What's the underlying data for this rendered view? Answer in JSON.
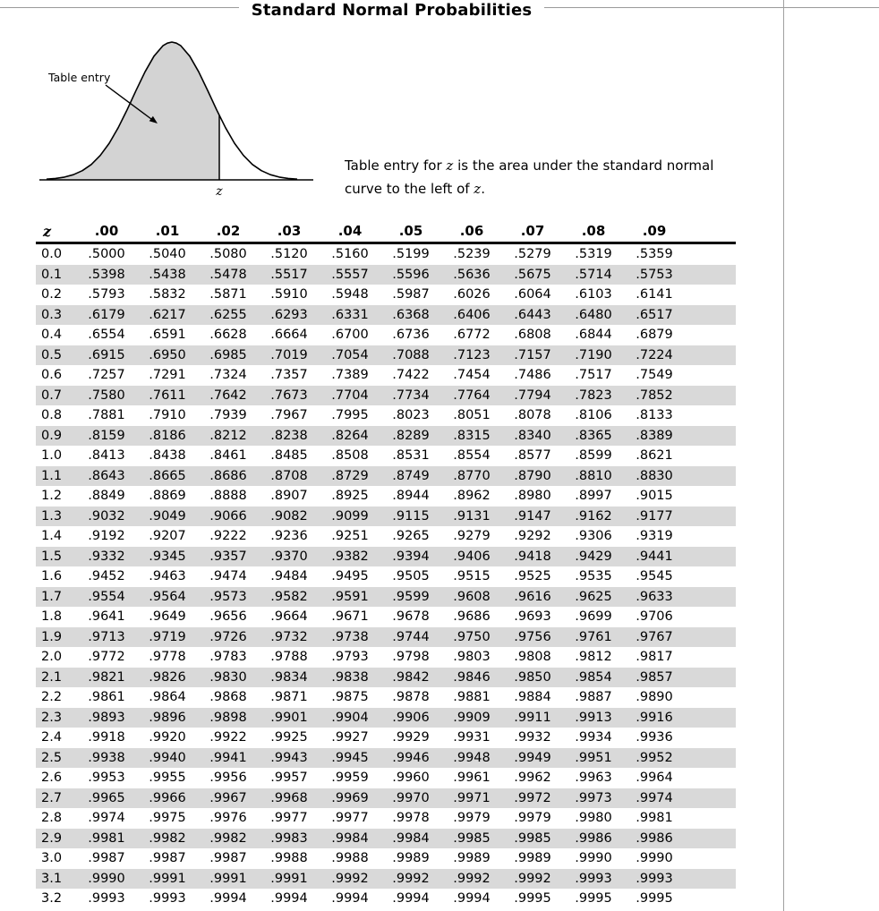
{
  "page": {
    "title": "Standard Normal Probabilities"
  },
  "diagram": {
    "table_entry_label": "Table entry",
    "z_label": "z",
    "curve_fill": "#d3d3d3"
  },
  "caption": {
    "segments": [
      {
        "text": "Table entry for ",
        "italic": false
      },
      {
        "text": "z",
        "italic": true
      },
      {
        "text": " is the area under the standard normal curve to the left of ",
        "italic": false
      },
      {
        "text": "z",
        "italic": true
      },
      {
        "text": ".",
        "italic": false
      }
    ]
  },
  "table": {
    "stripe_color": "#d9d9d9",
    "header": [
      "z",
      ".00",
      ".01",
      ".02",
      ".03",
      ".04",
      ".05",
      ".06",
      ".07",
      ".08",
      ".09"
    ],
    "rows": [
      {
        "z": "0.0",
        "values": [
          ".5000",
          ".5040",
          ".5080",
          ".5120",
          ".5160",
          ".5199",
          ".5239",
          ".5279",
          ".5319",
          ".5359"
        ]
      },
      {
        "z": "0.1",
        "values": [
          ".5398",
          ".5438",
          ".5478",
          ".5517",
          ".5557",
          ".5596",
          ".5636",
          ".5675",
          ".5714",
          ".5753"
        ]
      },
      {
        "z": "0.2",
        "values": [
          ".5793",
          ".5832",
          ".5871",
          ".5910",
          ".5948",
          ".5987",
          ".6026",
          ".6064",
          ".6103",
          ".6141"
        ]
      },
      {
        "z": "0.3",
        "values": [
          ".6179",
          ".6217",
          ".6255",
          ".6293",
          ".6331",
          ".6368",
          ".6406",
          ".6443",
          ".6480",
          ".6517"
        ]
      },
      {
        "z": "0.4",
        "values": [
          ".6554",
          ".6591",
          ".6628",
          ".6664",
          ".6700",
          ".6736",
          ".6772",
          ".6808",
          ".6844",
          ".6879"
        ]
      },
      {
        "z": "0.5",
        "values": [
          ".6915",
          ".6950",
          ".6985",
          ".7019",
          ".7054",
          ".7088",
          ".7123",
          ".7157",
          ".7190",
          ".7224"
        ]
      },
      {
        "z": "0.6",
        "values": [
          ".7257",
          ".7291",
          ".7324",
          ".7357",
          ".7389",
          ".7422",
          ".7454",
          ".7486",
          ".7517",
          ".7549"
        ]
      },
      {
        "z": "0.7",
        "values": [
          ".7580",
          ".7611",
          ".7642",
          ".7673",
          ".7704",
          ".7734",
          ".7764",
          ".7794",
          ".7823",
          ".7852"
        ]
      },
      {
        "z": "0.8",
        "values": [
          ".7881",
          ".7910",
          ".7939",
          ".7967",
          ".7995",
          ".8023",
          ".8051",
          ".8078",
          ".8106",
          ".8133"
        ]
      },
      {
        "z": "0.9",
        "values": [
          ".8159",
          ".8186",
          ".8212",
          ".8238",
          ".8264",
          ".8289",
          ".8315",
          ".8340",
          ".8365",
          ".8389"
        ]
      },
      {
        "z": "1.0",
        "values": [
          ".8413",
          ".8438",
          ".8461",
          ".8485",
          ".8508",
          ".8531",
          ".8554",
          ".8577",
          ".8599",
          ".8621"
        ]
      },
      {
        "z": "1.1",
        "values": [
          ".8643",
          ".8665",
          ".8686",
          ".8708",
          ".8729",
          ".8749",
          ".8770",
          ".8790",
          ".8810",
          ".8830"
        ]
      },
      {
        "z": "1.2",
        "values": [
          ".8849",
          ".8869",
          ".8888",
          ".8907",
          ".8925",
          ".8944",
          ".8962",
          ".8980",
          ".8997",
          ".9015"
        ]
      },
      {
        "z": "1.3",
        "values": [
          ".9032",
          ".9049",
          ".9066",
          ".9082",
          ".9099",
          ".9115",
          ".9131",
          ".9147",
          ".9162",
          ".9177"
        ]
      },
      {
        "z": "1.4",
        "values": [
          ".9192",
          ".9207",
          ".9222",
          ".9236",
          ".9251",
          ".9265",
          ".9279",
          ".9292",
          ".9306",
          ".9319"
        ]
      },
      {
        "z": "1.5",
        "values": [
          ".9332",
          ".9345",
          ".9357",
          ".9370",
          ".9382",
          ".9394",
          ".9406",
          ".9418",
          ".9429",
          ".9441"
        ]
      },
      {
        "z": "1.6",
        "values": [
          ".9452",
          ".9463",
          ".9474",
          ".9484",
          ".9495",
          ".9505",
          ".9515",
          ".9525",
          ".9535",
          ".9545"
        ]
      },
      {
        "z": "1.7",
        "values": [
          ".9554",
          ".9564",
          ".9573",
          ".9582",
          ".9591",
          ".9599",
          ".9608",
          ".9616",
          ".9625",
          ".9633"
        ]
      },
      {
        "z": "1.8",
        "values": [
          ".9641",
          ".9649",
          ".9656",
          ".9664",
          ".9671",
          ".9678",
          ".9686",
          ".9693",
          ".9699",
          ".9706"
        ]
      },
      {
        "z": "1.9",
        "values": [
          ".9713",
          ".9719",
          ".9726",
          ".9732",
          ".9738",
          ".9744",
          ".9750",
          ".9756",
          ".9761",
          ".9767"
        ]
      },
      {
        "z": "2.0",
        "values": [
          ".9772",
          ".9778",
          ".9783",
          ".9788",
          ".9793",
          ".9798",
          ".9803",
          ".9808",
          ".9812",
          ".9817"
        ]
      },
      {
        "z": "2.1",
        "values": [
          ".9821",
          ".9826",
          ".9830",
          ".9834",
          ".9838",
          ".9842",
          ".9846",
          ".9850",
          ".9854",
          ".9857"
        ]
      },
      {
        "z": "2.2",
        "values": [
          ".9861",
          ".9864",
          ".9868",
          ".9871",
          ".9875",
          ".9878",
          ".9881",
          ".9884",
          ".9887",
          ".9890"
        ]
      },
      {
        "z": "2.3",
        "values": [
          ".9893",
          ".9896",
          ".9898",
          ".9901",
          ".9904",
          ".9906",
          ".9909",
          ".9911",
          ".9913",
          ".9916"
        ]
      },
      {
        "z": "2.4",
        "values": [
          ".9918",
          ".9920",
          ".9922",
          ".9925",
          ".9927",
          ".9929",
          ".9931",
          ".9932",
          ".9934",
          ".9936"
        ]
      },
      {
        "z": "2.5",
        "values": [
          ".9938",
          ".9940",
          ".9941",
          ".9943",
          ".9945",
          ".9946",
          ".9948",
          ".9949",
          ".9951",
          ".9952"
        ]
      },
      {
        "z": "2.6",
        "values": [
          ".9953",
          ".9955",
          ".9956",
          ".9957",
          ".9959",
          ".9960",
          ".9961",
          ".9962",
          ".9963",
          ".9964"
        ]
      },
      {
        "z": "2.7",
        "values": [
          ".9965",
          ".9966",
          ".9967",
          ".9968",
          ".9969",
          ".9970",
          ".9971",
          ".9972",
          ".9973",
          ".9974"
        ]
      },
      {
        "z": "2.8",
        "values": [
          ".9974",
          ".9975",
          ".9976",
          ".9977",
          ".9977",
          ".9978",
          ".9979",
          ".9979",
          ".9980",
          ".9981"
        ]
      },
      {
        "z": "2.9",
        "values": [
          ".9981",
          ".9982",
          ".9982",
          ".9983",
          ".9984",
          ".9984",
          ".9985",
          ".9985",
          ".9986",
          ".9986"
        ]
      },
      {
        "z": "3.0",
        "values": [
          ".9987",
          ".9987",
          ".9987",
          ".9988",
          ".9988",
          ".9989",
          ".9989",
          ".9989",
          ".9990",
          ".9990"
        ]
      },
      {
        "z": "3.1",
        "values": [
          ".9990",
          ".9991",
          ".9991",
          ".9991",
          ".9992",
          ".9992",
          ".9992",
          ".9992",
          ".9993",
          ".9993"
        ]
      },
      {
        "z": "3.2",
        "values": [
          ".9993",
          ".9993",
          ".9994",
          ".9994",
          ".9994",
          ".9994",
          ".9994",
          ".9995",
          ".9995",
          ".9995"
        ]
      }
    ]
  }
}
